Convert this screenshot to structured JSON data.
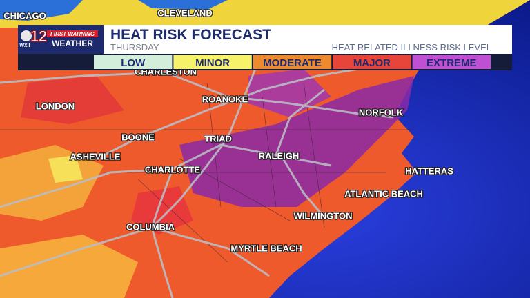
{
  "header": {
    "logo": {
      "channel": "12",
      "station": "WXII",
      "brand_top": "FIRST WARNING",
      "brand_bottom": "WEATHER"
    },
    "title": "HEAT RISK FORECAST",
    "subtitle": "THURSDAY",
    "legend_title": "HEAT-RELATED ILLNESS RISK LEVEL"
  },
  "legend": [
    {
      "label": "LOW",
      "color": "#d4eedc"
    },
    {
      "label": "MINOR",
      "color": "#f6f36a"
    },
    {
      "label": "MODERATE",
      "color": "#ee8a2e"
    },
    {
      "label": "MAJOR",
      "color": "#e8453a"
    },
    {
      "label": "EXTREME",
      "color": "#bf4fd3"
    }
  ],
  "cities": [
    "CHICAGO",
    "CLEVELAND",
    "CHARLESTON",
    "LONDON",
    "ROANOKE",
    "NORFOLK",
    "BOONE",
    "TRIAD",
    "ASHEVILLE",
    "RALEIGH",
    "CHARLOTTE",
    "HATTERAS",
    "ATLANTIC BEACH",
    "WILMINGTON",
    "COLUMBIA",
    "MYRTLE BEACH"
  ]
}
